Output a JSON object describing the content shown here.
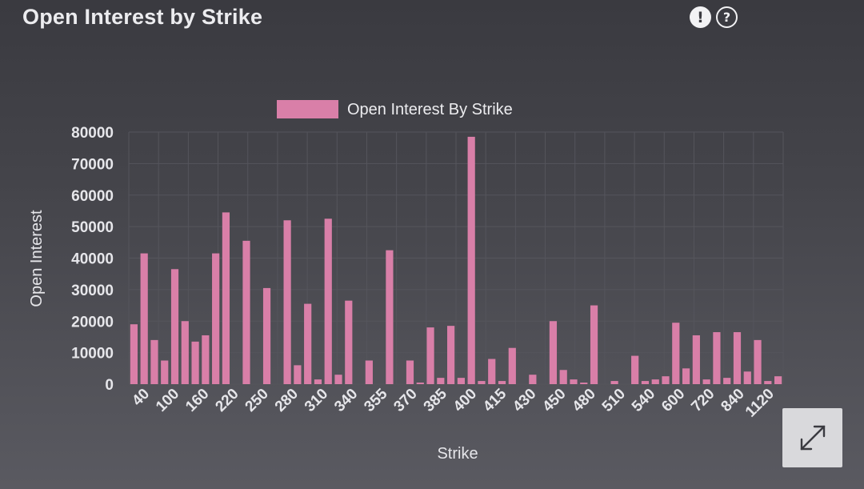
{
  "header": {
    "title": "Open Interest by Strike",
    "alert_icon": "exclamation-icon",
    "help_icon": "question-icon",
    "alert_glyph": "!",
    "help_glyph": "?"
  },
  "expand_button": {
    "icon": "expand-icon"
  },
  "colors": {
    "bar": "#d97fa8",
    "grid": "#55555c",
    "text": "#e6e6ea"
  },
  "chart_data": {
    "type": "bar",
    "title": "",
    "legend": {
      "label": "Open Interest By Strike",
      "placement": "top-center"
    },
    "xlabel": "Strike",
    "ylabel": "Open Interest",
    "ylim": [
      0,
      80000
    ],
    "yticks": [
      0,
      10000,
      20000,
      30000,
      40000,
      50000,
      60000,
      70000,
      80000
    ],
    "xtick_labels": [
      "40",
      "100",
      "160",
      "220",
      "250",
      "280",
      "310",
      "340",
      "355",
      "370",
      "385",
      "400",
      "415",
      "430",
      "450",
      "480",
      "510",
      "540",
      "600",
      "720",
      "840",
      "1120"
    ],
    "grid": true,
    "values": [
      19000,
      41500,
      14000,
      7500,
      36500,
      20000,
      13500,
      15500,
      41500,
      54500,
      0,
      45500,
      0,
      30500,
      0,
      52000,
      6000,
      25500,
      1500,
      52500,
      3000,
      26500,
      0,
      7500,
      0,
      42500,
      0,
      7500,
      500,
      18000,
      2000,
      18500,
      2000,
      78500,
      1000,
      8000,
      1000,
      11500,
      0,
      3000,
      0,
      20000,
      4500,
      1500,
      500,
      25000,
      0,
      1000,
      0,
      9000,
      1000,
      1500,
      2500,
      19500,
      5000,
      15500,
      1500,
      16500,
      2000,
      16500,
      4000,
      14000,
      1000,
      2500
    ]
  }
}
